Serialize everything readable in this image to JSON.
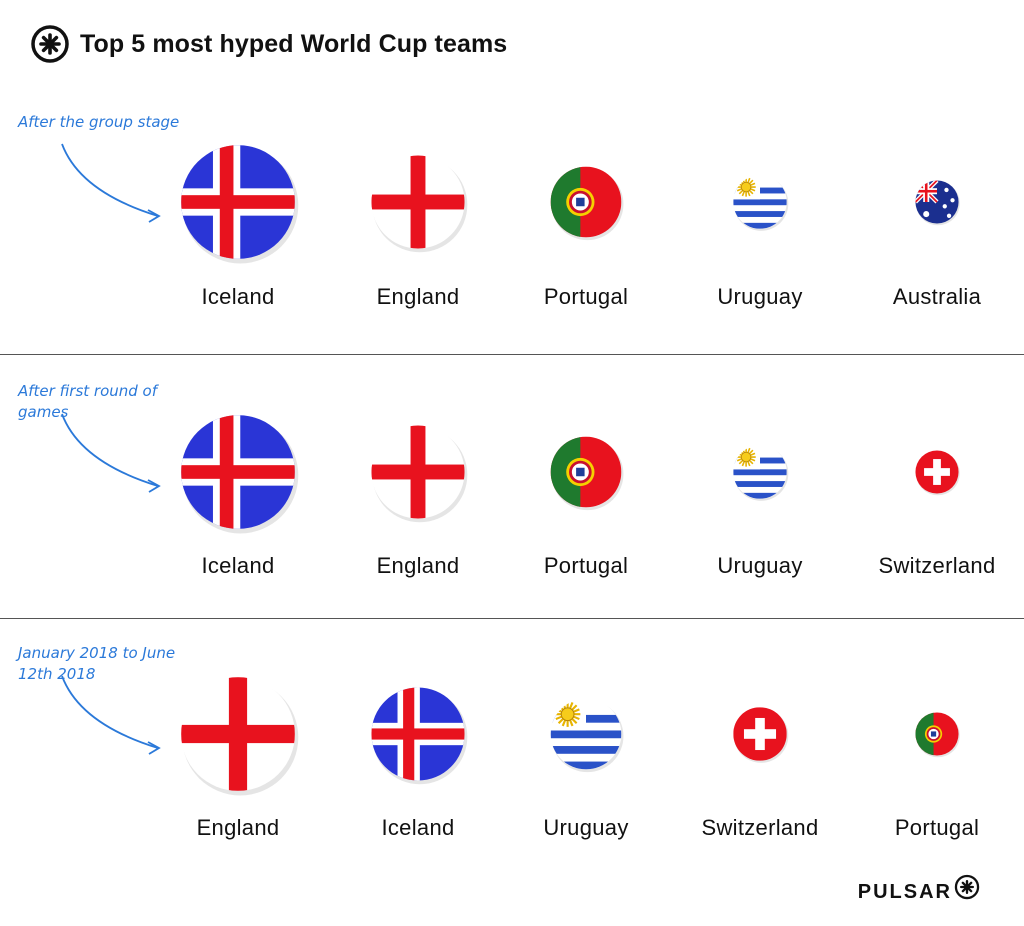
{
  "title": "Top 5 most hyped World Cup teams",
  "brand": "PULSAR",
  "icons": {
    "logo": "pulsar-asterisk-icon"
  },
  "colors": {
    "annotation": "#2b79d9",
    "divider": "#555555"
  },
  "chart_data": {
    "type": "bubble-ranking",
    "title": "Top 5 most hyped World Cup teams",
    "rows": [
      {
        "period": "After the group stage",
        "teams": [
          {
            "rank": 1,
            "name": "Iceland",
            "flag": "iceland"
          },
          {
            "rank": 2,
            "name": "England",
            "flag": "england"
          },
          {
            "rank": 3,
            "name": "Portugal",
            "flag": "portugal"
          },
          {
            "rank": 4,
            "name": "Uruguay",
            "flag": "uruguay"
          },
          {
            "rank": 5,
            "name": "Australia",
            "flag": "australia"
          }
        ]
      },
      {
        "period": "After first round of games",
        "teams": [
          {
            "rank": 1,
            "name": "Iceland",
            "flag": "iceland"
          },
          {
            "rank": 2,
            "name": "England",
            "flag": "england"
          },
          {
            "rank": 3,
            "name": "Portugal",
            "flag": "portugal"
          },
          {
            "rank": 4,
            "name": "Uruguay",
            "flag": "uruguay"
          },
          {
            "rank": 5,
            "name": "Switzerland",
            "flag": "switzerland"
          }
        ]
      },
      {
        "period": "January 2018 to June 12th 2018",
        "teams": [
          {
            "rank": 1,
            "name": "England",
            "flag": "england"
          },
          {
            "rank": 2,
            "name": "Iceland",
            "flag": "iceland"
          },
          {
            "rank": 3,
            "name": "Uruguay",
            "flag": "uruguay"
          },
          {
            "rank": 4,
            "name": "Switzerland",
            "flag": "switzerland"
          },
          {
            "rank": 5,
            "name": "Portugal",
            "flag": "portugal"
          }
        ]
      }
    ]
  }
}
